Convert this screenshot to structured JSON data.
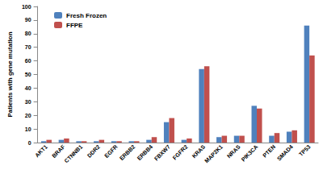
{
  "chart_data": {
    "type": "bar",
    "categories": [
      "AKT1",
      "BRAF",
      "CTNNB1",
      "DDR2",
      "EGFR",
      "ERBB2",
      "ERBB4",
      "FBXW7",
      "FGFR2",
      "KRAS",
      "MAP2K1",
      "NRAS",
      "PIK3CA",
      "PTEN",
      "SMAD4",
      "TP53"
    ],
    "series": [
      {
        "name": "Fresh Frozen",
        "color": "#4f81bd",
        "values": [
          1,
          2,
          1,
          1,
          1,
          1,
          2,
          15,
          2,
          54,
          4,
          5,
          27,
          5,
          8,
          86
        ]
      },
      {
        "name": "FFPE",
        "color": "#c0504d",
        "values": [
          2,
          3,
          1,
          2,
          1,
          1,
          4,
          18,
          3,
          56,
          5,
          5,
          25,
          7,
          9,
          64
        ]
      }
    ],
    "y_label": "Patients with gene mutation",
    "ylim": [
      0,
      100
    ],
    "yticks": [
      0,
      10,
      20,
      30,
      40,
      50,
      60,
      70,
      80,
      90,
      100
    ],
    "legend": "upper left",
    "grid": false
  }
}
